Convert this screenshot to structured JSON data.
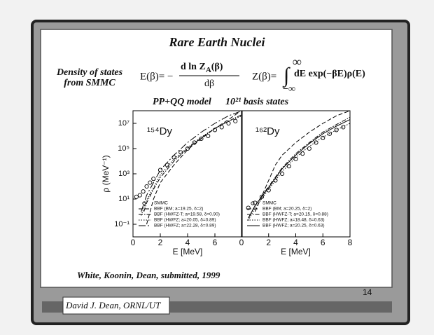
{
  "slide": {
    "title": "Rare Earth Nuclei",
    "subtitle": [
      "Density of states",
      "from SMMC"
    ],
    "formula_e": {
      "lhs": "E(β)= −",
      "numerator": "d ln Z",
      "numerator_sub": "A",
      "numerator_end": "(β)",
      "denominator": "dβ"
    },
    "formula_z": {
      "lhs": "Z(β)=",
      "integral": "∫",
      "upper": "∞",
      "lower": "−∞",
      "rhs": "dE exp(−βE)ρ(E)"
    },
    "model": "PP+QQ model",
    "basis": "10²¹ basis states",
    "citation": "White, Koonin, Dean, submitted, 1999",
    "footer": "David J. Dean, ORNL/UT",
    "page": "14"
  },
  "chart_data": [
    {
      "type": "line",
      "annotation": "¹⁵⁴Dy",
      "xlabel": "E [MeV]",
      "ylabel": "ρ (MeV⁻¹)",
      "xlim": [
        0,
        8
      ],
      "xticks": [
        0,
        2,
        4,
        6
      ],
      "ylim": [
        0.01,
        100000000
      ],
      "log_y": true,
      "yticks": [
        {
          "value": 10000000,
          "label": "10⁷"
        },
        {
          "value": 100000,
          "label": "10⁵"
        },
        {
          "value": 1000,
          "label": "10³"
        },
        {
          "value": 10,
          "label": "10¹"
        },
        {
          "value": 0.1,
          "label": "10⁻¹"
        }
      ],
      "series": [
        {
          "name": "SMMC",
          "style": "marker",
          "color": "#000",
          "x": [
            0.25,
            0.5,
            0.75,
            1,
            1.25,
            1.5,
            2,
            2.5,
            3,
            3.5,
            4,
            4.5,
            5,
            5.5,
            6,
            6.5,
            7,
            7.5
          ],
          "values": [
            15,
            20,
            40,
            100,
            200,
            400,
            2000,
            5000,
            20000,
            50000,
            100000,
            300000,
            600000,
            1000000,
            3000000,
            5000000,
            10000000,
            15000000
          ]
        },
        {
          "name": "BBF (BM; a=19.25, δ=2)",
          "style": "dashed",
          "color": "#000",
          "x": [
            1,
            1.5,
            2,
            3,
            4,
            5,
            6,
            7,
            7.8
          ],
          "values": [
            0.1,
            10,
            200,
            5000,
            80000,
            600000,
            4000000,
            20000000,
            80000000
          ]
        },
        {
          "name": "BBF (HWFZ-T; a=19.58, δ=0.90)",
          "style": "dash-dot",
          "color": "#000",
          "x": [
            0.8,
            1,
            1.5,
            2,
            3,
            4,
            5,
            6,
            7,
            8
          ],
          "values": [
            1,
            5,
            60,
            500,
            10000,
            100000,
            700000,
            4000000,
            15000000,
            50000000
          ]
        },
        {
          "name": "BBF (HWFZ; a=20.05, δ=0.89)",
          "style": "dotted",
          "color": "#000",
          "x": [
            0.6,
            1,
            2,
            3,
            4,
            5,
            6,
            7,
            8
          ],
          "values": [
            0.5,
            8,
            800,
            15000,
            120000,
            800000,
            4000000,
            15000000,
            40000000
          ]
        },
        {
          "name": "BBF (HWFZ; a=22.28, δ=0.89)",
          "style": "long-dash",
          "color": "#000",
          "x": [
            0.6,
            1,
            2,
            3,
            4,
            5,
            6,
            7,
            8
          ],
          "values": [
            1,
            20,
            2000,
            30000,
            300000,
            2000000,
            10000000,
            40000000,
            100000000
          ]
        }
      ]
    },
    {
      "type": "line",
      "annotation": "¹⁶²Dy",
      "xlabel": "E [MeV]",
      "xlim": [
        0,
        8
      ],
      "xticks": [
        0,
        2,
        4,
        6,
        8
      ],
      "ylim": [
        0.01,
        100000000
      ],
      "log_y": true,
      "series": [
        {
          "name": "SMMC",
          "style": "marker",
          "color": "#000",
          "x": [
            0.5,
            1,
            1.5,
            2,
            2.5,
            3,
            3.5,
            4,
            4.5,
            5,
            5.5,
            6,
            6.5,
            7,
            7.5
          ],
          "values": [
            2,
            5,
            15,
            50,
            300,
            1000,
            4000,
            15000,
            40000,
            100000,
            300000,
            700000,
            1500000,
            3000000,
            5000000
          ]
        },
        {
          "name": "BBF (BM; a=20.25, δ=2)",
          "style": "dashed",
          "color": "#000",
          "x": [
            1,
            2,
            2.5,
            3,
            4,
            5,
            6,
            7,
            8
          ],
          "values": [
            1,
            300,
            5000,
            30000,
            300000,
            2000000,
            10000000,
            40000000,
            100000000
          ]
        },
        {
          "name": "BBF (HWFZ-T; a=20.15, δ=0.88)",
          "style": "dash-dot",
          "color": "#000",
          "x": [
            0.5,
            1,
            2,
            3,
            4,
            5,
            6,
            7,
            8
          ],
          "values": [
            0.3,
            3,
            100,
            3000,
            40000,
            300000,
            2000000,
            8000000,
            30000000
          ]
        },
        {
          "name": "BBF (HWFZ; a=18.48, δ=0.63)",
          "style": "dotted",
          "color": "#000",
          "x": [
            0.5,
            1,
            2,
            3,
            4,
            5,
            6,
            7,
            8
          ],
          "values": [
            0.2,
            2,
            60,
            1500,
            20000,
            150000,
            800000,
            3000000,
            10000000
          ]
        },
        {
          "name": "BBF (HWFZ; a=20.25, δ=0.63)",
          "style": "solid",
          "color": "#000",
          "x": [
            0.5,
            1,
            2,
            3,
            4,
            5,
            6,
            7,
            8
          ],
          "values": [
            0.3,
            3,
            80,
            2500,
            30000,
            250000,
            1500000,
            6000000,
            20000000
          ]
        }
      ]
    }
  ]
}
